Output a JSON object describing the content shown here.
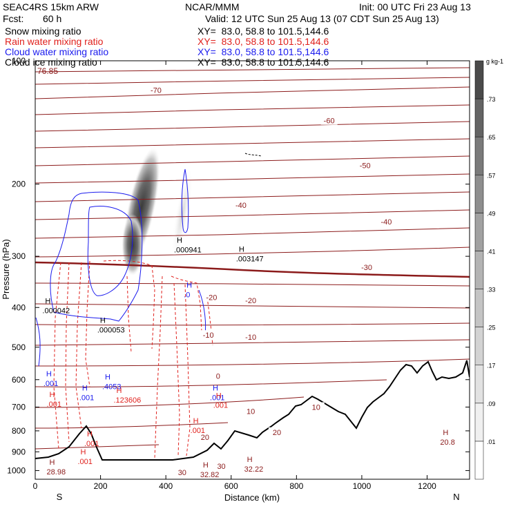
{
  "header": {
    "model": "SEAC4RS 15km ARW",
    "org": "NCAR/MMM",
    "init": "Init: 00 UTC Fri 23 Aug 13",
    "fcst_label": "Fcst:",
    "fcst_value": "60 h",
    "valid": "Valid: 12 UTC Sun 25 Aug 13 (07 CDT Sun 25 Aug 13)",
    "fields": [
      {
        "name": "Snow mixing ratio",
        "xy": "XY=  83.0, 58.8 to 101.5,144.6",
        "color": "#000000"
      },
      {
        "name": "Rain water mixing ratio",
        "xy": "XY=  83.0, 58.8 to 101.5,144.6",
        "color": "#e0201c"
      },
      {
        "name": "Cloud water mixing ratio",
        "xy": "XY=  83.0, 58.8 to 101.5,144.6",
        "color": "#1a1aee"
      },
      {
        "name": "Cloud ice mixing ratio",
        "xy": "XY=  83.0, 58.8 to 101.5,144.6",
        "color": "#000000"
      }
    ]
  },
  "chart_data": {
    "type": "cross-section",
    "xlabel": "Distance (km)",
    "ylabel": "Pressure (hPa)",
    "xlim": [
      0,
      1330
    ],
    "ylim": [
      1050,
      100
    ],
    "y_log_scale": true,
    "x_ticks": [
      0,
      200,
      400,
      600,
      800,
      1000,
      1200
    ],
    "y_ticks": [
      100,
      200,
      300,
      400,
      500,
      600,
      700,
      800,
      900,
      1000
    ],
    "x_end_labels": {
      "left": "S",
      "right": "N"
    },
    "temperature_line_color": "#8b1a1a",
    "temperature_contours": [
      {
        "label": "-70",
        "x": 370,
        "p": 118
      },
      {
        "label": "-60",
        "x": 900,
        "p": 140
      },
      {
        "label": "-50",
        "x": 1010,
        "p": 180
      },
      {
        "label": "-40",
        "x": 630,
        "p": 225
      },
      {
        "label": "-40",
        "x": 1075,
        "p": 247
      },
      {
        "label": "-30",
        "x": 1015,
        "p": 319
      },
      {
        "label": "-20",
        "x": 540,
        "p": 378
      },
      {
        "label": "-20",
        "x": 660,
        "p": 384
      },
      {
        "label": "-10",
        "x": 530,
        "p": 467
      },
      {
        "label": "-10",
        "x": 660,
        "p": 472
      },
      {
        "label": "0",
        "x": 560,
        "p": 588
      },
      {
        "label": "10",
        "x": 660,
        "p": 716
      },
      {
        "label": "10",
        "x": 860,
        "p": 700
      },
      {
        "label": "20",
        "x": 520,
        "p": 828
      },
      {
        "label": "20",
        "x": 740,
        "p": 806
      },
      {
        "label": "30",
        "x": 450,
        "p": 1011
      },
      {
        "label": "30",
        "x": 570,
        "p": 975
      }
    ],
    "snow_max": {
      "label": "76.85",
      "x": 10,
      "p": 135
    },
    "maxima_labels": [
      {
        "text": ".000941",
        "x": 425,
        "p": 290,
        "color": "#000000"
      },
      {
        "text": ".003147",
        "x": 615,
        "p": 305,
        "color": "#000000"
      },
      {
        "text": ".000042",
        "x": 22,
        "p": 408,
        "color": "#000000"
      },
      {
        "text": ".000053",
        "x": 190,
        "p": 455,
        "color": "#000000"
      },
      {
        "text": ".0",
        "x": 455,
        "p": 373,
        "color": "#1a1aee"
      },
      {
        "text": ".001",
        "x": 25,
        "p": 615,
        "color": "#1a1aee"
      },
      {
        "text": ".4053",
        "x": 205,
        "p": 625,
        "color": "#1a1aee"
      },
      {
        "text": ".001",
        "x": 135,
        "p": 665,
        "color": "#1a1aee"
      },
      {
        "text": ".001",
        "x": 535,
        "p": 665,
        "color": "#1a1aee"
      },
      {
        "text": ".123606",
        "x": 240,
        "p": 675,
        "color": "#e0201c"
      },
      {
        "text": ".001",
        "x": 35,
        "p": 690,
        "color": "#e0201c"
      },
      {
        "text": ".001",
        "x": 545,
        "p": 695,
        "color": "#e0201c"
      },
      {
        "text": ".001",
        "x": 475,
        "p": 800,
        "color": "#e0201c"
      },
      {
        "text": ".001",
        "x": 150,
        "p": 862,
        "color": "#e0201c"
      },
      {
        "text": ".001",
        "x": 130,
        "p": 953,
        "color": "#e0201c"
      },
      {
        "text": "28.98",
        "x": 35,
        "p": 1010,
        "color": "#8b1a1a"
      },
      {
        "text": "32.82",
        "x": 505,
        "p": 1025,
        "color": "#8b1a1a"
      },
      {
        "text": "32.22",
        "x": 640,
        "p": 995,
        "color": "#8b1a1a"
      },
      {
        "text": "20.8",
        "x": 1240,
        "p": 855,
        "color": "#8b1a1a"
      }
    ],
    "colorbar": {
      "unit": "g kg-1",
      "ticks": [
        ".01",
        ".09",
        ".17",
        ".25",
        ".33",
        ".41",
        ".49",
        ".57",
        ".65",
        ".73"
      ],
      "shades": [
        "#ffffff",
        "#f0f0f0",
        "#e2e2e2",
        "#d3d3d3",
        "#c4c4c4",
        "#b3b3b3",
        "#a1a1a1",
        "#8e8e8e",
        "#7a7a7a",
        "#646464",
        "#4a4a4a"
      ]
    }
  }
}
